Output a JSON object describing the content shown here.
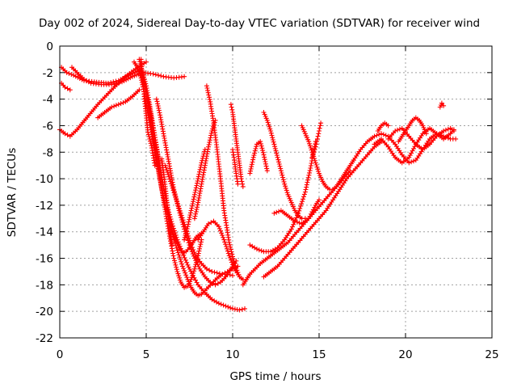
{
  "chart_data": {
    "type": "scatter",
    "title": "Day 002 of 2024, Sidereal Day-to-day VTEC variation (SDTVAR) for receiver wind",
    "xlabel": "GPS time / hours",
    "ylabel": "SDTVAR / TECUs",
    "xlim": [
      0,
      25
    ],
    "ylim": [
      -22,
      0
    ],
    "xticks": [
      "0",
      "5",
      "10",
      "15",
      "20",
      "25"
    ],
    "yticks": [
      "0",
      "-2",
      "-4",
      "-6",
      "-8",
      "-10",
      "-12",
      "-14",
      "-16",
      "-18",
      "-20",
      "-22"
    ],
    "grid": true,
    "marker": "plus",
    "color": "#ff0000",
    "series": [
      {
        "x": [
          0,
          0.3,
          0.6,
          1.0,
          1.5,
          2.2,
          3.0,
          3.8,
          4.5,
          5.0
        ],
        "y": [
          -6.3,
          -6.6,
          -6.8,
          -6.3,
          -5.5,
          -4.4,
          -3.3,
          -2.3,
          -1.6,
          -1.2
        ]
      },
      {
        "x": [
          0.1,
          0.4,
          0.8,
          1.4,
          2.0,
          2.8,
          3.4,
          4.0,
          4.6
        ],
        "y": [
          -1.6,
          -2.0,
          -2.2,
          -2.6,
          -2.7,
          -2.8,
          -2.6,
          -2.2,
          -1.8
        ]
      },
      {
        "x": [
          0.1,
          0.3,
          0.6
        ],
        "y": [
          -2.8,
          -3.1,
          -3.3
        ]
      },
      {
        "x": [
          0.7,
          1.0,
          1.4,
          1.8,
          2.4,
          3.0,
          3.6,
          4.2,
          4.8,
          5.4,
          6.0,
          6.6,
          7.2
        ],
        "y": [
          -1.6,
          -2.0,
          -2.5,
          -2.8,
          -2.9,
          -2.9,
          -2.7,
          -2.3,
          -2.0,
          -2.1,
          -2.3,
          -2.4,
          -2.3
        ]
      },
      {
        "x": [
          2.2,
          2.6,
          3.0,
          3.4,
          3.8,
          4.2,
          4.6
        ],
        "y": [
          -5.4,
          -5.0,
          -4.6,
          -4.4,
          -4.2,
          -3.8,
          -3.3
        ]
      },
      {
        "x": [
          4.3,
          4.5,
          4.7,
          4.9,
          5.1,
          5.3,
          5.5,
          5.7,
          5.9,
          6.1,
          6.3,
          6.5,
          6.7,
          6.9,
          7.1,
          7.3,
          7.5,
          7.7,
          7.9,
          8.1,
          8.2
        ],
        "y": [
          -1.2,
          -1.6,
          -2.4,
          -3.6,
          -5.0,
          -6.5,
          -8.0,
          -9.4,
          -10.8,
          -12.0,
          -13.0,
          -13.9,
          -14.6,
          -15.2,
          -15.6,
          -15.5,
          -15.2,
          -14.8,
          -14.4,
          -14.2,
          -14.1
        ]
      },
      {
        "x": [
          4.8,
          5.0,
          5.2,
          5.4,
          5.6,
          5.8,
          6.0,
          6.2,
          6.5,
          6.8,
          7.1,
          7.4,
          7.7,
          8.0,
          8.4,
          8.8,
          9.2,
          9.6,
          10.0,
          10.4,
          10.7
        ],
        "y": [
          -2.0,
          -3.0,
          -4.4,
          -6.0,
          -7.6,
          -9.2,
          -10.6,
          -12.0,
          -13.4,
          -14.6,
          -15.6,
          -16.5,
          -17.3,
          -18.0,
          -18.6,
          -19.1,
          -19.4,
          -19.6,
          -19.8,
          -19.9,
          -19.8
        ]
      },
      {
        "x": [
          5.1,
          5.3,
          5.5,
          5.7,
          5.9,
          6.1,
          6.3,
          6.5,
          6.8,
          7.1,
          7.4,
          7.6,
          7.8,
          8.0,
          8.2,
          8.5,
          8.8,
          9.1,
          9.4,
          9.7,
          10.0,
          10.3
        ],
        "y": [
          -4.0,
          -5.4,
          -6.9,
          -8.4,
          -9.9,
          -11.3,
          -12.7,
          -14.0,
          -15.4,
          -16.6,
          -17.6,
          -18.2,
          -18.6,
          -18.8,
          -18.7,
          -18.3,
          -17.9,
          -17.5,
          -17.2,
          -17.0,
          -16.8,
          -16.6
        ]
      },
      {
        "x": [
          5.6,
          5.8,
          6.0,
          6.2,
          6.4,
          6.6,
          6.9,
          7.2,
          7.5,
          7.8,
          8.1,
          8.4,
          8.7,
          9.0,
          9.3,
          9.6,
          9.9,
          10.2
        ],
        "y": [
          -4.0,
          -5.2,
          -6.6,
          -8.0,
          -9.4,
          -10.8,
          -12.4,
          -13.8,
          -15.0,
          -16.0,
          -16.8,
          -17.4,
          -17.8,
          -18.0,
          -17.8,
          -17.4,
          -16.8,
          -16.2
        ]
      },
      {
        "x": [
          4.6,
          4.8,
          5.0,
          5.2,
          5.4,
          5.6,
          5.8,
          6.0,
          6.2,
          6.4,
          6.6,
          6.8,
          7.0,
          7.2,
          7.4,
          7.6,
          7.8,
          8.0,
          8.2
        ],
        "y": [
          -1.0,
          -2.2,
          -3.6,
          -5.2,
          -6.8,
          -8.4,
          -10.0,
          -11.6,
          -13.2,
          -14.7,
          -16.0,
          -17.0,
          -17.8,
          -18.2,
          -18.1,
          -17.6,
          -16.8,
          -15.8,
          -14.6
        ]
      },
      {
        "x": [
          4.7,
          4.9,
          5.1,
          5.3,
          5.5
        ],
        "y": [
          -1.0,
          -4.0,
          -6.5,
          -7.5,
          -9.0
        ]
      },
      {
        "x": [
          5.9,
          6.0,
          6.1,
          6.2,
          6.3,
          6.4,
          6.5
        ],
        "y": [
          -8.5,
          -9.5,
          -10.6,
          -11.8,
          -13.0,
          -14.2,
          -15.0
        ]
      },
      {
        "x": [
          6.1,
          6.4,
          6.7,
          7.0,
          7.3,
          7.6,
          7.9,
          8.2,
          8.5,
          8.8,
          9.1,
          9.4,
          9.7,
          10.0
        ],
        "y": [
          -9.0,
          -10.2,
          -11.4,
          -12.6,
          -13.8,
          -15.0,
          -15.9,
          -16.4,
          -16.8,
          -17.0,
          -17.1,
          -17.2,
          -17.2,
          -17.3
        ]
      },
      {
        "x": [
          7.2,
          7.4,
          7.6,
          7.8,
          8.0,
          8.2,
          8.4
        ],
        "y": [
          -14.6,
          -13.6,
          -12.4,
          -11.2,
          -10.0,
          -8.8,
          -7.8
        ]
      },
      {
        "x": [
          7.8,
          8.0,
          8.2,
          8.4,
          8.6,
          8.8,
          9.0
        ],
        "y": [
          -13.0,
          -11.8,
          -10.4,
          -9.0,
          -7.6,
          -6.4,
          -5.6
        ]
      },
      {
        "x": [
          8.5,
          8.7,
          8.9,
          9.1,
          9.3,
          9.5,
          9.8,
          10.1,
          10.4
        ],
        "y": [
          -3.0,
          -4.2,
          -5.8,
          -7.8,
          -10.0,
          -12.4,
          -14.8,
          -16.4,
          -17.4
        ]
      },
      {
        "x": [
          8.0,
          8.3,
          8.6,
          8.9,
          9.2,
          9.5,
          9.8,
          10.1,
          10.4,
          10.6
        ],
        "y": [
          -14.6,
          -14.0,
          -13.4,
          -13.2,
          -13.6,
          -14.6,
          -15.8,
          -16.8,
          -17.4,
          -17.6
        ]
      },
      {
        "x": [
          9.9,
          10.0,
          10.1,
          10.2,
          10.3,
          10.4,
          10.5,
          10.6
        ],
        "y": [
          -4.4,
          -5.0,
          -6.0,
          -7.0,
          -8.0,
          -9.0,
          -10.0,
          -10.6
        ]
      },
      {
        "x": [
          10.0,
          10.1,
          10.2,
          10.3
        ],
        "y": [
          -7.8,
          -8.6,
          -9.6,
          -10.4
        ]
      },
      {
        "x": [
          11.0,
          11.2,
          11.4,
          11.6,
          11.8,
          12.0
        ],
        "y": [
          -9.6,
          -8.4,
          -7.4,
          -7.2,
          -8.2,
          -9.4
        ]
      },
      {
        "x": [
          11.0,
          11.4,
          11.8,
          12.2,
          12.6,
          13.0,
          13.4,
          13.8,
          14.2,
          14.5,
          14.8
        ],
        "y": [
          -15.0,
          -15.3,
          -15.5,
          -15.5,
          -15.2,
          -14.6,
          -13.8,
          -12.6,
          -11.0,
          -9.2,
          -7.2
        ]
      },
      {
        "x": [
          10.6,
          10.8,
          11.0,
          11.3,
          11.6,
          12.0,
          12.4,
          12.8,
          13.2,
          13.6,
          14.0,
          14.4,
          14.8,
          15.2,
          15.6,
          16.0,
          16.4,
          16.8
        ],
        "y": [
          -18.0,
          -17.6,
          -17.2,
          -16.8,
          -16.4,
          -16.0,
          -15.6,
          -15.2,
          -14.8,
          -14.2,
          -13.6,
          -13.0,
          -12.4,
          -11.8,
          -11.2,
          -10.6,
          -10.0,
          -9.4
        ]
      },
      {
        "x": [
          11.8,
          12.2,
          12.6,
          13.0,
          13.4,
          13.8,
          14.2,
          14.6,
          15.0,
          15.4,
          15.8,
          16.2,
          16.6,
          17.0,
          17.4,
          17.8,
          18.2,
          18.6
        ],
        "y": [
          -17.4,
          -17.0,
          -16.6,
          -16.0,
          -15.4,
          -14.8,
          -14.2,
          -13.6,
          -13.0,
          -12.4,
          -11.6,
          -10.8,
          -10.0,
          -9.4,
          -8.8,
          -8.2,
          -7.6,
          -7.2
        ]
      },
      {
        "x": [
          11.8,
          12.0,
          12.2,
          12.4,
          12.6,
          12.8,
          13.0,
          13.2,
          13.4,
          13.6,
          13.8,
          14.0,
          14.2
        ],
        "y": [
          -5.0,
          -5.6,
          -6.4,
          -7.4,
          -8.4,
          -9.4,
          -10.4,
          -11.2,
          -11.8,
          -12.4,
          -12.8,
          -13.0,
          -13.0
        ]
      },
      {
        "x": [
          14.0,
          14.2,
          14.4,
          14.6,
          14.8,
          15.0,
          15.2,
          15.4,
          15.6,
          15.8,
          16.0,
          16.2,
          16.4,
          16.6,
          16.8,
          17.0
        ],
        "y": [
          -6.0,
          -6.6,
          -7.2,
          -8.0,
          -8.8,
          -9.6,
          -10.2,
          -10.6,
          -10.8,
          -10.8,
          -10.6,
          -10.2,
          -9.8,
          -9.4,
          -9.0,
          -8.6
        ]
      },
      {
        "x": [
          12.4,
          12.8,
          13.2,
          13.6,
          14.0,
          14.4,
          14.8,
          15.0
        ],
        "y": [
          -12.6,
          -12.4,
          -12.8,
          -13.2,
          -13.4,
          -13.0,
          -12.0,
          -11.6
        ]
      },
      {
        "x": [
          14.6,
          14.7,
          14.8,
          14.9,
          15.0,
          15.1
        ],
        "y": [
          -8.4,
          -8.0,
          -7.6,
          -7.0,
          -6.4,
          -5.8
        ]
      },
      {
        "x": [
          17.0,
          17.4,
          17.8,
          18.2,
          18.6,
          19.0,
          19.4,
          19.8,
          20.2,
          20.6,
          21.0,
          21.4,
          21.8,
          22.2,
          22.6,
          22.9
        ],
        "y": [
          -8.6,
          -7.8,
          -7.2,
          -6.8,
          -6.6,
          -6.8,
          -7.4,
          -8.2,
          -8.8,
          -8.6,
          -7.8,
          -7.0,
          -6.6,
          -6.8,
          -7.0,
          -7.0
        ]
      },
      {
        "x": [
          18.2,
          18.6,
          19.0,
          19.4,
          19.8,
          20.2,
          20.6,
          21.0,
          21.4,
          21.8,
          22.2,
          22.6,
          22.8
        ],
        "y": [
          -7.4,
          -7.0,
          -7.6,
          -8.4,
          -8.8,
          -8.4,
          -7.4,
          -6.6,
          -6.2,
          -6.6,
          -7.0,
          -6.6,
          -6.3
        ]
      },
      {
        "x": [
          19.0,
          19.4,
          19.8,
          20.2,
          20.6,
          21.0,
          21.4,
          21.8,
          22.2,
          22.6,
          22.8
        ],
        "y": [
          -7.0,
          -6.4,
          -6.2,
          -6.8,
          -7.4,
          -7.8,
          -7.4,
          -6.8,
          -6.4,
          -6.2,
          -6.4
        ]
      },
      {
        "x": [
          19.6,
          19.8,
          20.0,
          20.2,
          20.4,
          20.6,
          20.8,
          21.0,
          21.2
        ],
        "y": [
          -7.2,
          -6.8,
          -6.4,
          -6.0,
          -5.6,
          -5.4,
          -5.6,
          -6.0,
          -6.6
        ]
      },
      {
        "x": [
          18.4,
          18.6,
          18.8,
          19.0
        ],
        "y": [
          -6.4,
          -6.0,
          -5.8,
          -6.0
        ]
      },
      {
        "x": [
          22.0,
          22.1,
          22.2
        ],
        "y": [
          -4.6,
          -4.3,
          -4.5
        ]
      }
    ]
  }
}
